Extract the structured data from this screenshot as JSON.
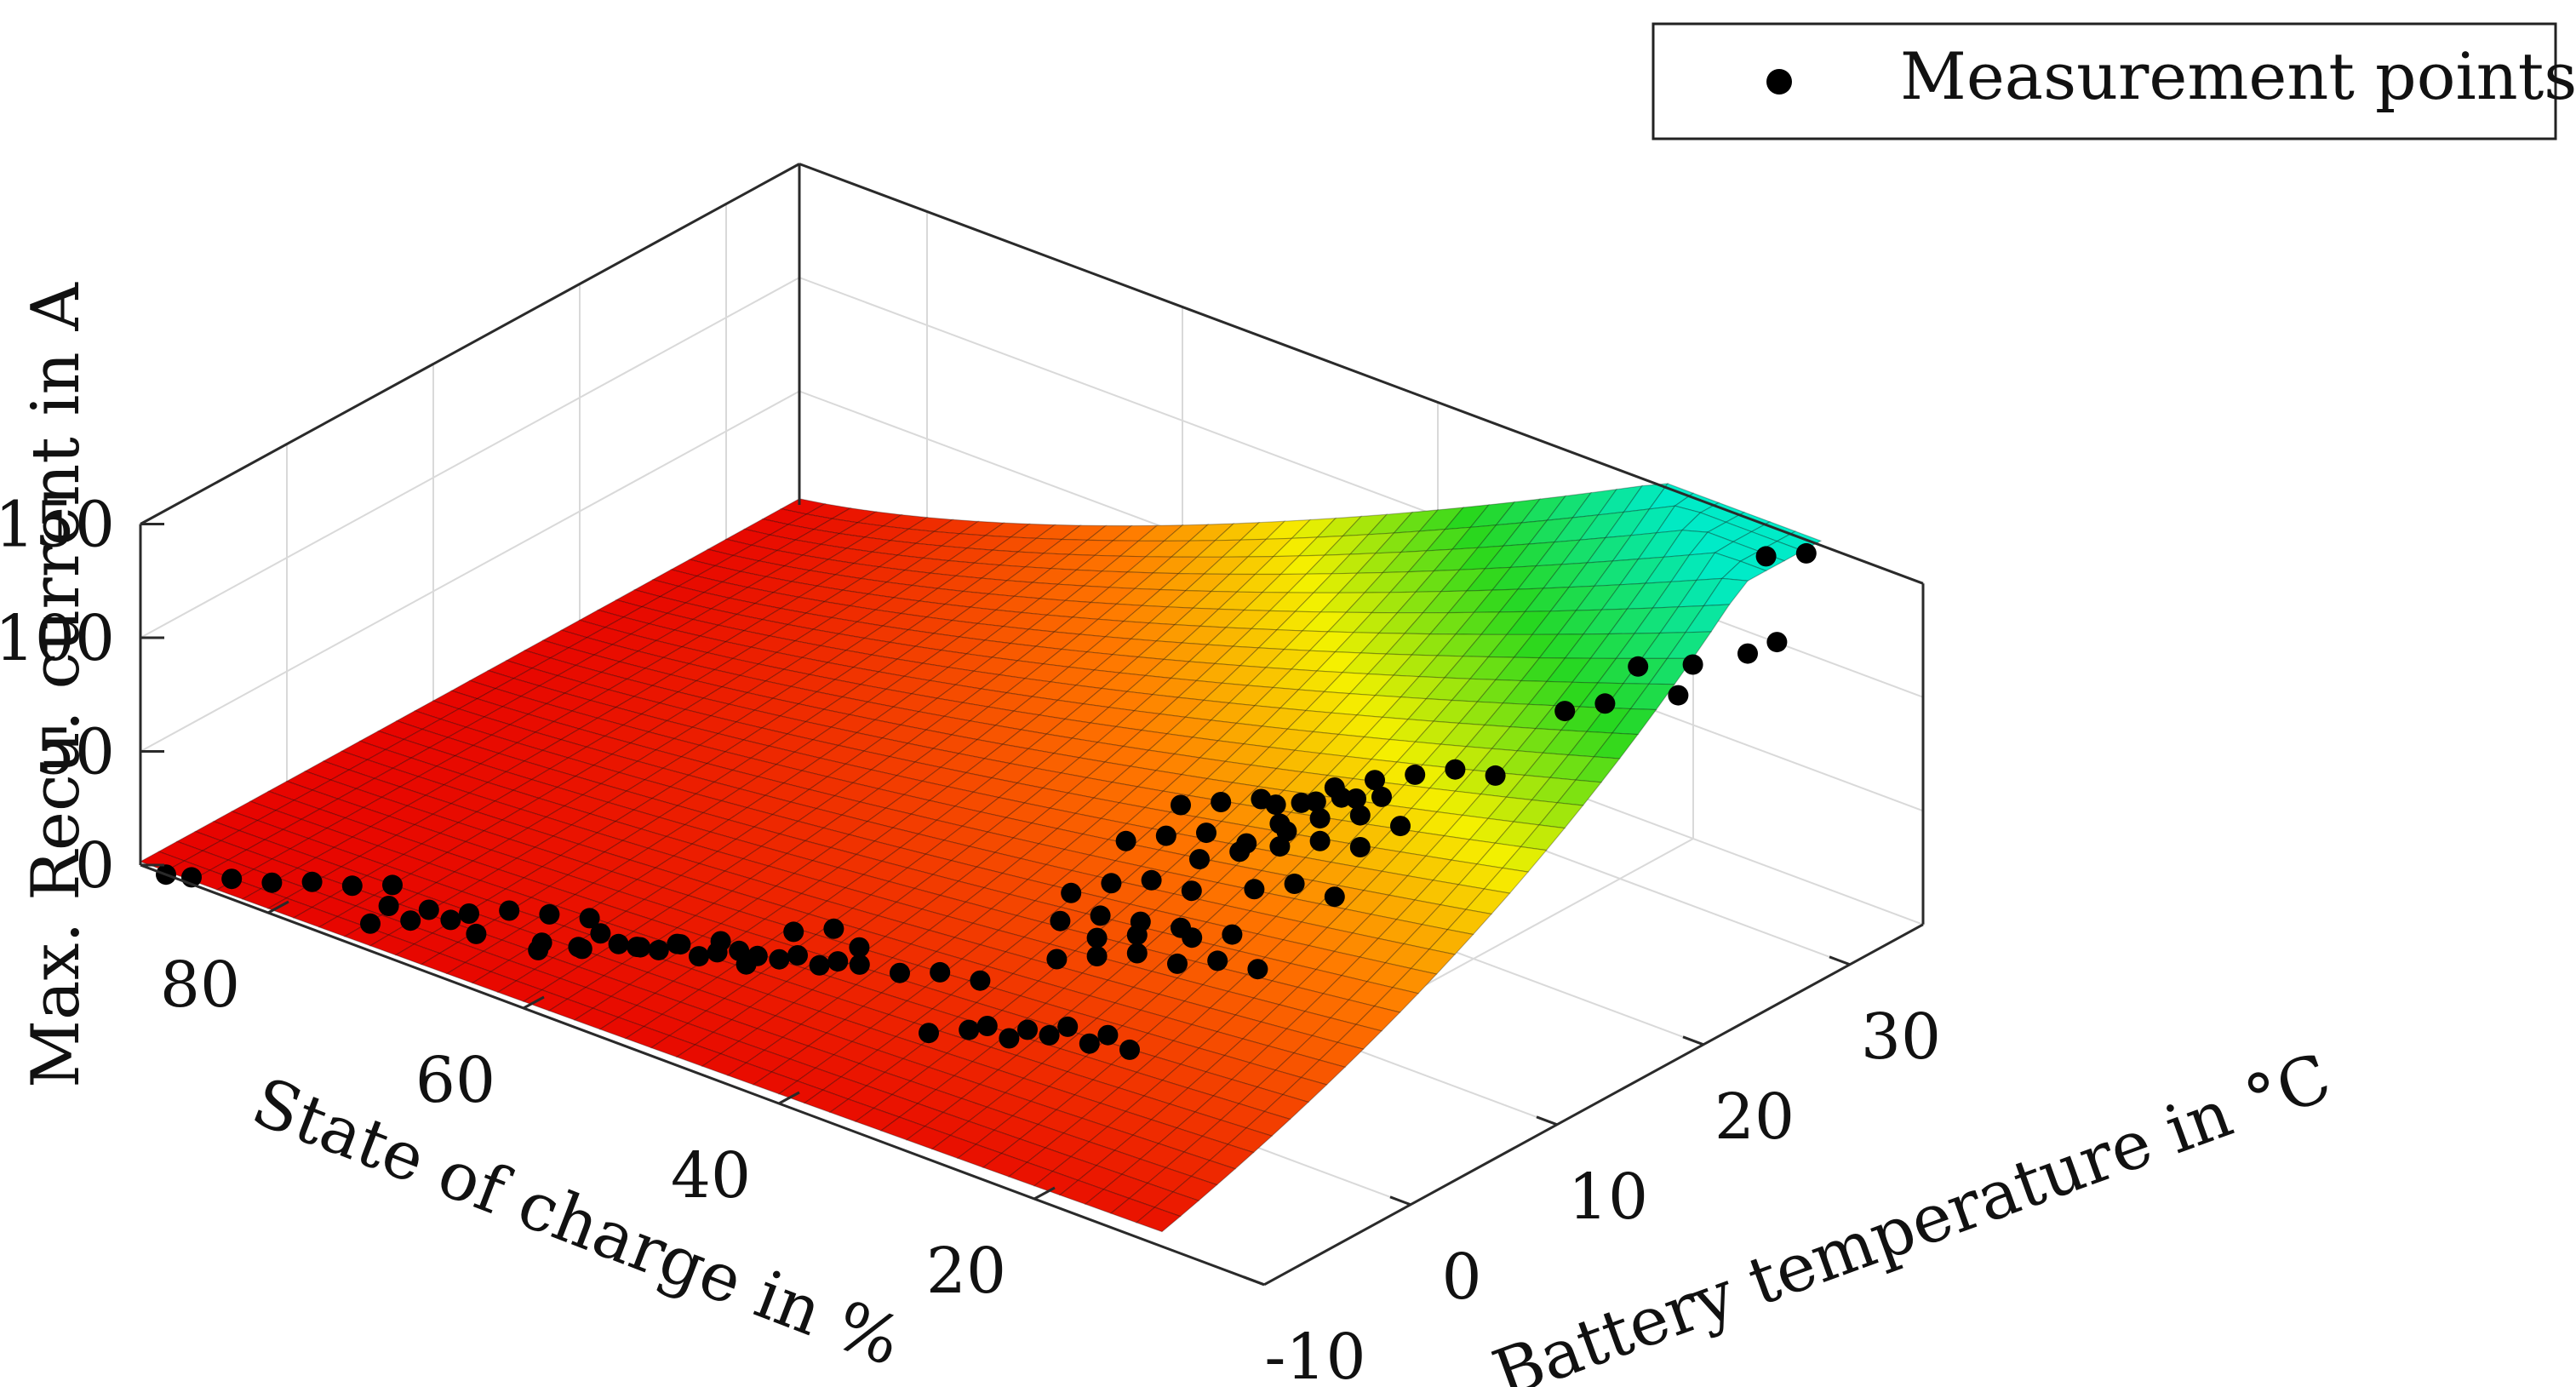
{
  "chart_data": {
    "type": "surface3d",
    "title": "",
    "zlabel": "Max. Recu. current in A",
    "xlabel": "State of charge in %",
    "ylabel": "Battery temperature in °C",
    "zlim": [
      0,
      150
    ],
    "soc_range": [
      10,
      90
    ],
    "temp_range": [
      -10,
      35
    ],
    "z_ticks": [
      {
        "value": 0,
        "label": "0"
      },
      {
        "value": 50,
        "label": "50"
      },
      {
        "value": 100,
        "label": "100"
      },
      {
        "value": 150,
        "label": "150"
      }
    ],
    "soc_ticks": [
      {
        "value": 80,
        "label": "80"
      },
      {
        "value": 60,
        "label": "60"
      },
      {
        "value": 40,
        "label": "40"
      },
      {
        "value": 20,
        "label": "20"
      }
    ],
    "temp_ticks": [
      {
        "value": -10,
        "label": "-10"
      },
      {
        "value": 0,
        "label": "0"
      },
      {
        "value": 10,
        "label": "10"
      },
      {
        "value": 20,
        "label": "20"
      },
      {
        "value": 30,
        "label": "30"
      }
    ],
    "grid": true,
    "colormap": "red-yellow-green-cyan",
    "legend": {
      "position": "top-right",
      "entries": [
        "Measurement points"
      ]
    },
    "series": [
      {
        "name": "Measurement points",
        "type": "scatter3d",
        "color": "#000000",
        "points": [
          [
            88,
            -10,
            0
          ],
          [
            86,
            -10,
            3
          ],
          [
            84,
            -9,
            3
          ],
          [
            82,
            -8,
            2
          ],
          [
            80,
            -7,
            3
          ],
          [
            78,
            -6,
            2
          ],
          [
            76,
            -5,
            3
          ],
          [
            74,
            -7,
            5
          ],
          [
            72,
            -6,
            4
          ],
          [
            70,
            -5,
            3
          ],
          [
            68,
            -4,
            5
          ],
          [
            66,
            -3,
            4
          ],
          [
            64,
            -2,
            3
          ],
          [
            62,
            -3,
            4
          ],
          [
            72,
            -10,
            12
          ],
          [
            70,
            -9,
            14
          ],
          [
            68,
            -8,
            15
          ],
          [
            66,
            -8,
            13
          ],
          [
            62,
            -7,
            14
          ],
          [
            60,
            -6,
            12
          ],
          [
            58,
            -4,
            10
          ],
          [
            56,
            -3,
            12
          ],
          [
            54,
            -2,
            9
          ],
          [
            52,
            -1,
            8
          ],
          [
            50,
            0,
            9
          ],
          [
            48,
            1,
            7
          ],
          [
            60,
            -9,
            22
          ],
          [
            58,
            -8,
            24
          ],
          [
            56,
            -7,
            26
          ],
          [
            54,
            -6,
            24
          ],
          [
            52,
            -5,
            22
          ],
          [
            50,
            -4,
            25
          ],
          [
            48,
            -3,
            22
          ],
          [
            46,
            -2,
            20
          ],
          [
            44,
            -1,
            21
          ],
          [
            42,
            0,
            18
          ],
          [
            40,
            1,
            19
          ],
          [
            38,
            2,
            16
          ],
          [
            52,
            -9,
            40
          ],
          [
            50,
            -8,
            42
          ],
          [
            48,
            -7,
            44
          ],
          [
            46,
            -7,
            38
          ],
          [
            40,
            -9,
            72
          ],
          [
            38,
            -8,
            74
          ],
          [
            36,
            -8,
            70
          ],
          [
            34,
            -5,
            26
          ],
          [
            32,
            -4,
            28
          ],
          [
            30,
            -3,
            25
          ],
          [
            28,
            -2,
            27
          ],
          [
            26,
            -1,
            24
          ],
          [
            24,
            0,
            22
          ],
          [
            34,
            -1,
            15
          ],
          [
            32,
            0,
            14
          ],
          [
            30,
            1,
            16
          ],
          [
            28,
            2,
            13
          ],
          [
            32,
            2,
            38
          ],
          [
            30,
            3,
            40
          ],
          [
            28,
            4,
            42
          ],
          [
            26,
            5,
            38
          ],
          [
            24,
            6,
            40
          ],
          [
            22,
            7,
            37
          ],
          [
            30,
            3,
            48
          ],
          [
            28,
            4,
            50
          ],
          [
            26,
            6,
            46
          ],
          [
            24,
            7,
            48
          ],
          [
            26,
            -3,
            85
          ],
          [
            24,
            -2,
            88
          ],
          [
            22,
            -1,
            86
          ],
          [
            20,
            0,
            84
          ],
          [
            24,
            -4,
            105
          ],
          [
            22,
            -3,
            110
          ],
          [
            20,
            -2,
            112
          ],
          [
            18,
            -1,
            108
          ],
          [
            22,
            -2,
            125
          ],
          [
            20,
            -1,
            128
          ],
          [
            18,
            0,
            130
          ],
          [
            16,
            1,
            126
          ],
          [
            14,
            2,
            132
          ],
          [
            20,
            0,
            138
          ],
          [
            18,
            1,
            140
          ],
          [
            16,
            2,
            142
          ],
          [
            14,
            3,
            141
          ],
          [
            12,
            4,
            144
          ],
          [
            10,
            5,
            145
          ],
          [
            16,
            3,
            136
          ],
          [
            14,
            4,
            138
          ],
          [
            12,
            5,
            140
          ],
          [
            30,
            10,
            58
          ],
          [
            28,
            11,
            62
          ],
          [
            26,
            12,
            65
          ],
          [
            24,
            13,
            68
          ],
          [
            22,
            14,
            66
          ],
          [
            26,
            12,
            75
          ],
          [
            24,
            13,
            78
          ],
          [
            22,
            14,
            80
          ],
          [
            20,
            15,
            76
          ],
          [
            24,
            14,
            88
          ],
          [
            22,
            15,
            92
          ],
          [
            20,
            16,
            95
          ],
          [
            18,
            17,
            98
          ],
          [
            16,
            18,
            96
          ],
          [
            28,
            12,
            42
          ],
          [
            26,
            13,
            45
          ],
          [
            24,
            14,
            40
          ],
          [
            14,
            26,
            120
          ],
          [
            12,
            28,
            118
          ],
          [
            10,
            30,
            120
          ],
          [
            12,
            27,
            108
          ],
          [
            12,
            22,
            122
          ],
          [
            14,
            21,
            118
          ],
          [
            10,
            34,
            150
          ],
          [
            12,
            33,
            148
          ],
          [
            10,
            32,
            118
          ]
        ]
      },
      {
        "name": "Fitted surface",
        "type": "surface"
      }
    ]
  }
}
